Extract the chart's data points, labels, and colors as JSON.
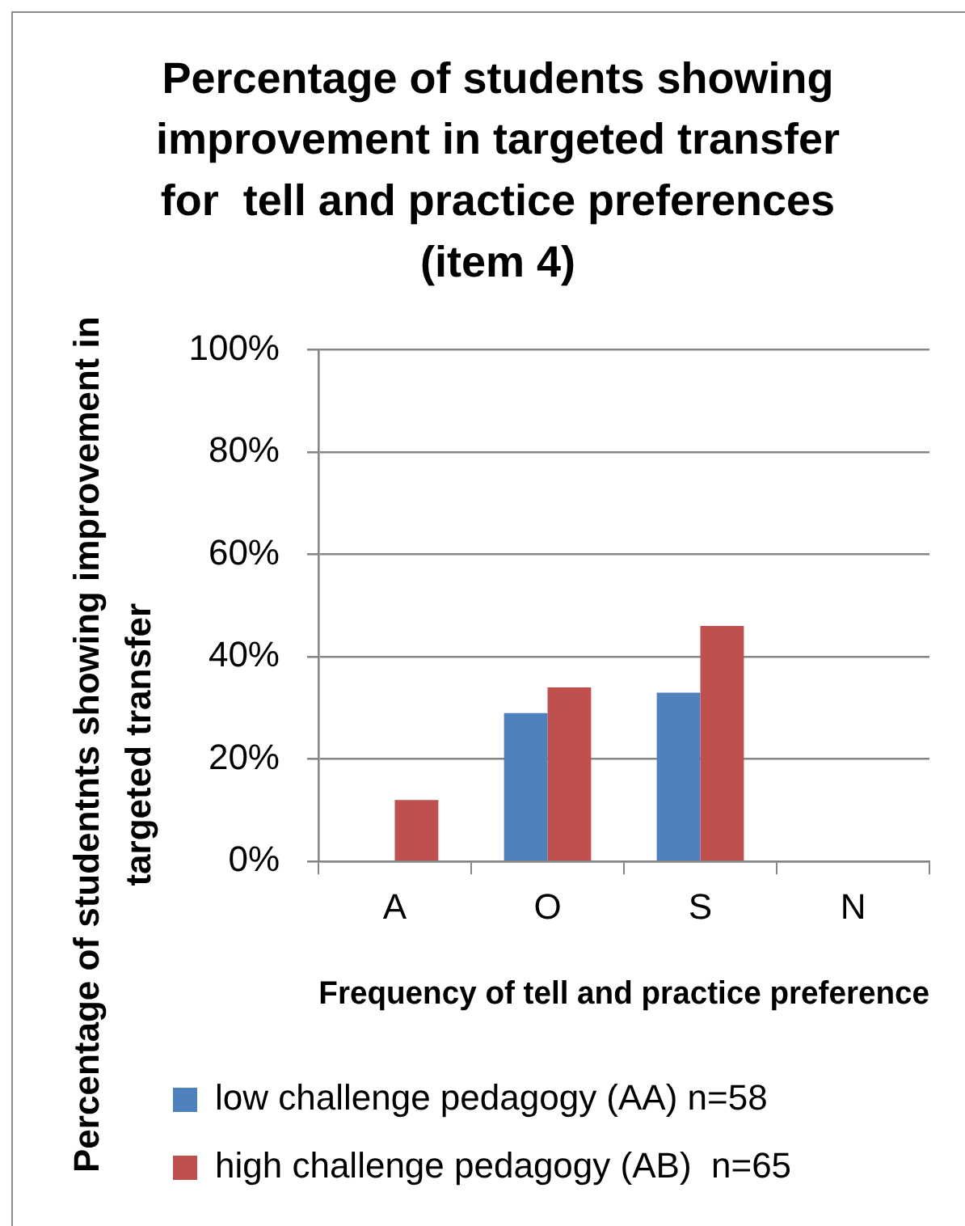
{
  "chart_data": {
    "type": "bar",
    "title": "Percentage of students showing improvement in targeted transfer for  tell and practice preferences (item 4)",
    "xlabel": "Frequency of tell and practice preference",
    "ylabel": "Percentage of studentnts showing improvement in targeted transfer",
    "categories": [
      "A",
      "O",
      "S",
      "N"
    ],
    "series": [
      {
        "name": "low challenge pedagogy (AA) n=58",
        "color": "#4f81bd",
        "values": [
          null,
          29,
          33,
          null
        ]
      },
      {
        "name": "high challenge pedagogy (AB)  n=65",
        "color": "#c0504d",
        "values": [
          12,
          34,
          46,
          null
        ]
      }
    ],
    "ylim": [
      0,
      100
    ],
    "yticks": [
      {
        "value": 0,
        "label": "0%"
      },
      {
        "value": 20,
        "label": "20%"
      },
      {
        "value": 40,
        "label": "40%"
      },
      {
        "value": 60,
        "label": "60%"
      },
      {
        "value": 80,
        "label": "80%"
      },
      {
        "value": 100,
        "label": "100%"
      }
    ],
    "grid": "y",
    "legend": "bottom"
  }
}
